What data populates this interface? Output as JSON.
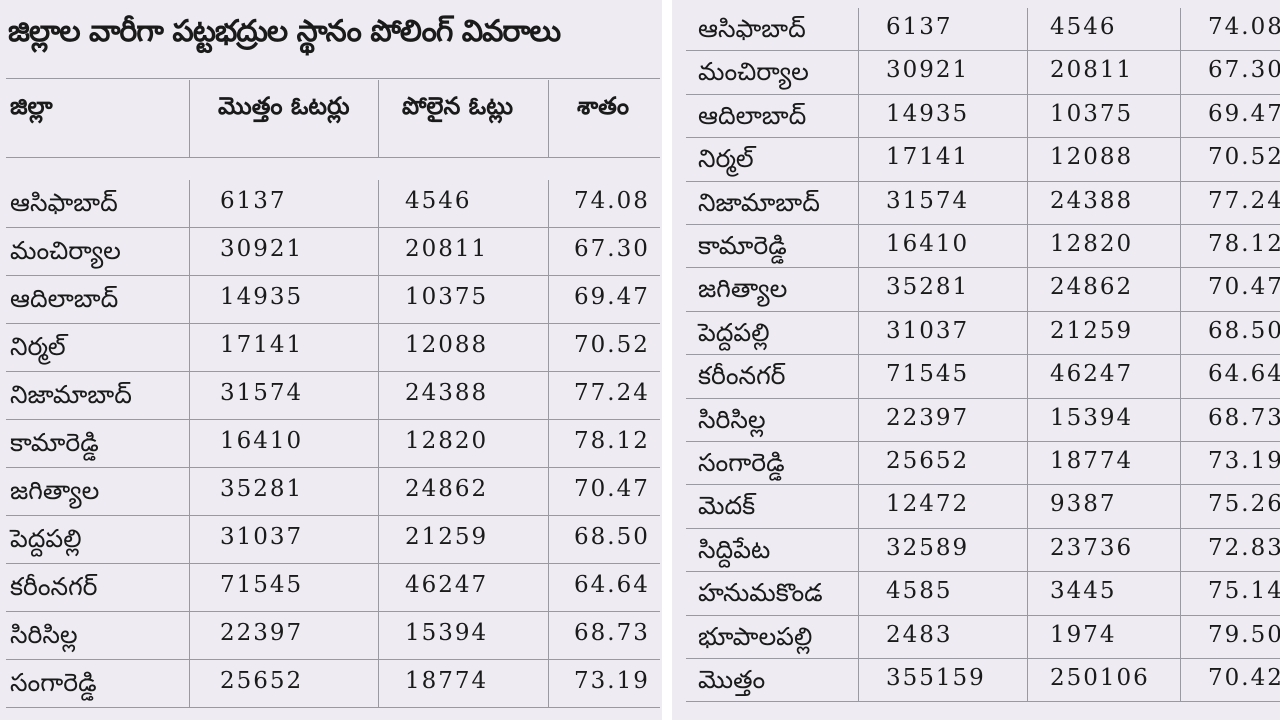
{
  "title": "జిల్లాల వారీగా పట్టభద్రుల స్థానం పోలింగ్ వివరాలు",
  "headers": [
    "జిల్లా",
    "మొత్తం ఓటర్లు",
    "పోలైన ఓట్లు",
    "శాతం"
  ],
  "left_rows": [
    {
      "district": "ఆసిఫాబాద్",
      "total": "6137",
      "polled": "4546",
      "pct": "74.08"
    },
    {
      "district": "మంచిర్యాల",
      "total": "30921",
      "polled": "20811",
      "pct": "67.30"
    },
    {
      "district": "ఆదిలాబాద్",
      "total": "14935",
      "polled": "10375",
      "pct": "69.47"
    },
    {
      "district": "నిర్మల్",
      "total": "17141",
      "polled": "12088",
      "pct": "70.52"
    },
    {
      "district": "నిజామాబాద్",
      "total": "31574",
      "polled": "24388",
      "pct": "77.24"
    },
    {
      "district": "కామారెడ్డి",
      "total": "16410",
      "polled": "12820",
      "pct": "78.12"
    },
    {
      "district": "జగిత్యాల",
      "total": "35281",
      "polled": "24862",
      "pct": "70.47"
    },
    {
      "district": "పెద్దపల్లి",
      "total": "31037",
      "polled": "21259",
      "pct": "68.50"
    },
    {
      "district": "కరీంనగర్",
      "total": "71545",
      "polled": "46247",
      "pct": "64.64"
    },
    {
      "district": "సిరిసిల్ల",
      "total": "22397",
      "polled": "15394",
      "pct": "68.73"
    },
    {
      "district": "సంగారెడ్డి",
      "total": "25652",
      "polled": "18774",
      "pct": "73.19"
    }
  ],
  "right_rows": [
    {
      "district": "ఆసిఫాబాద్",
      "total": "6137",
      "polled": "4546",
      "pct": "74.08"
    },
    {
      "district": "మంచిర్యాల",
      "total": "30921",
      "polled": "20811",
      "pct": "67.30"
    },
    {
      "district": "ఆదిలాబాద్",
      "total": "14935",
      "polled": "10375",
      "pct": "69.47"
    },
    {
      "district": "నిర్మల్",
      "total": "17141",
      "polled": "12088",
      "pct": "70.52"
    },
    {
      "district": "నిజామాబాద్",
      "total": "31574",
      "polled": "24388",
      "pct": "77.24"
    },
    {
      "district": "కామారెడ్డి",
      "total": "16410",
      "polled": "12820",
      "pct": "78.12"
    },
    {
      "district": "జగిత్యాల",
      "total": "35281",
      "polled": "24862",
      "pct": "70.47"
    },
    {
      "district": "పెద్దపల్లి",
      "total": "31037",
      "polled": "21259",
      "pct": "68.50"
    },
    {
      "district": "కరీంనగర్",
      "total": "71545",
      "polled": "46247",
      "pct": "64.64"
    },
    {
      "district": "సిరిసిల్ల",
      "total": "22397",
      "polled": "15394",
      "pct": "68.73"
    },
    {
      "district": "సంగారెడ్డి",
      "total": "25652",
      "polled": "18774",
      "pct": "73.19"
    },
    {
      "district": "మెదక్",
      "total": "12472",
      "polled": "9387",
      "pct": "75.26"
    },
    {
      "district": "సిద్దిపేట",
      "total": "32589",
      "polled": "23736",
      "pct": "72.83"
    },
    {
      "district": "హనుమకొండ",
      "total": "4585",
      "polled": "3445",
      "pct": "75.14"
    },
    {
      "district": "భూపాలపల్లి",
      "total": "2483",
      "polled": "1974",
      "pct": "79.50"
    },
    {
      "district": "మొత్తం",
      "total": "355159",
      "polled": "250106",
      "pct": "70.42"
    }
  ]
}
